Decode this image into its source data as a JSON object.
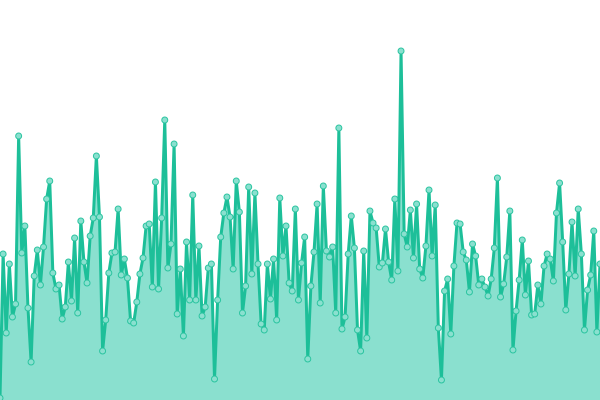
{
  "chart_data": {
    "type": "area",
    "title": "",
    "xlabel": "",
    "ylabel": "",
    "ylim": [
      0,
      400
    ],
    "grid": false,
    "axes_visible": false,
    "markers": true,
    "colors": {
      "line": "#1dbf99",
      "fill": "#8ae0cf",
      "marker_fill": "#8ae0cf",
      "marker_stroke": "#2cc4a0",
      "background": "#ffffff"
    },
    "values": [
      2,
      146,
      67,
      136,
      83,
      96,
      264,
      147,
      174,
      92,
      38,
      124,
      150,
      115,
      153,
      201,
      219,
      127,
      111,
      115,
      81,
      93,
      138,
      99,
      162,
      87,
      179,
      138,
      117,
      164,
      182,
      244,
      183,
      49,
      80,
      127,
      147,
      148,
      191,
      125,
      141,
      122,
      79,
      77,
      98,
      126,
      142,
      174,
      176,
      113,
      218,
      111,
      182,
      280,
      132,
      156,
      256,
      86,
      131,
      64,
      158,
      100,
      205,
      100,
      154,
      84,
      93,
      132,
      136,
      21,
      100,
      163,
      187,
      203,
      183,
      131,
      219,
      188,
      87,
      114,
      213,
      126,
      207,
      136,
      76,
      70,
      136,
      101,
      141,
      80,
      202,
      144,
      174,
      117,
      109,
      191,
      100,
      137,
      163,
      41,
      114,
      148,
      196,
      97,
      214,
      149,
      143,
      153,
      87,
      272,
      71,
      83,
      146,
      184,
      152,
      70,
      49,
      149,
      62,
      189,
      177,
      172,
      133,
      137,
      171,
      138,
      120,
      201,
      129,
      349,
      166,
      153,
      190,
      142,
      196,
      131,
      122,
      154,
      210,
      144,
      195,
      72,
      20,
      109,
      121,
      66,
      134,
      177,
      176,
      148,
      140,
      108,
      156,
      144,
      115,
      121,
      113,
      104,
      121,
      152,
      222,
      103,
      116,
      143,
      189,
      50,
      89,
      120,
      160,
      105,
      139,
      85,
      86,
      115,
      96,
      134,
      146,
      141,
      119,
      187,
      217,
      158,
      90,
      126,
      178,
      124,
      191,
      146,
      70,
      110,
      125,
      169,
      68,
      136
    ]
  }
}
